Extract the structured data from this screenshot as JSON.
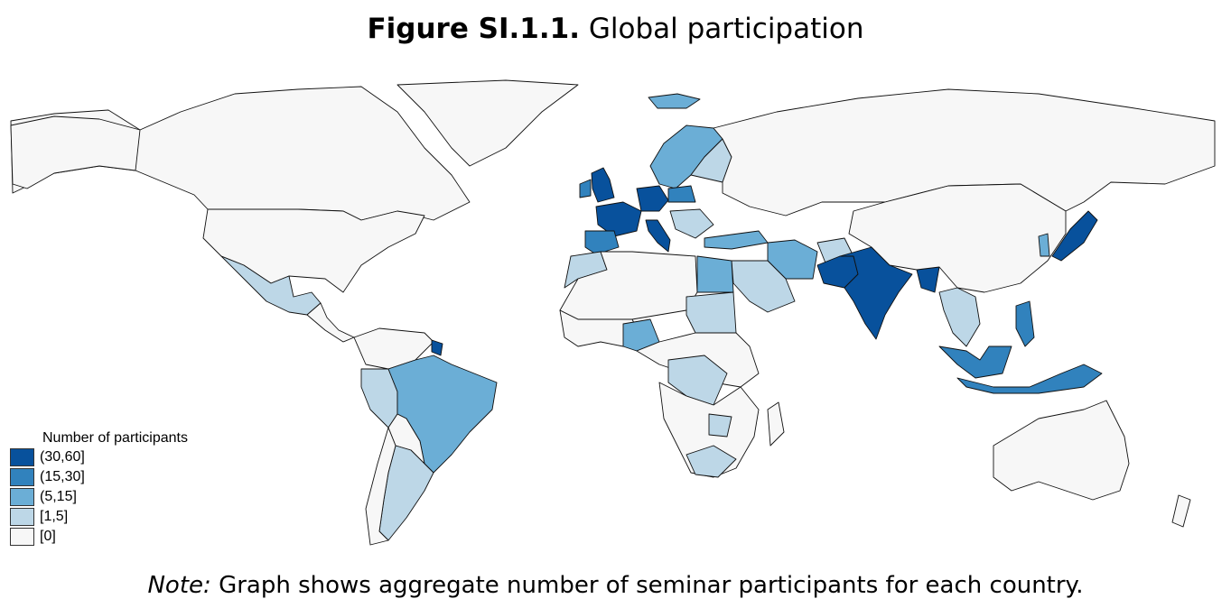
{
  "figure": {
    "label": "Figure SI.1.1.",
    "title": "Global participation"
  },
  "legend": {
    "title": "Number of participants",
    "items": [
      {
        "label": "(30,60]",
        "color": "#08519c"
      },
      {
        "label": "(15,30]",
        "color": "#3182bd"
      },
      {
        "label": "(5,15]",
        "color": "#6baed6"
      },
      {
        "label": "[1,5]",
        "color": "#bdd7e7"
      },
      {
        "label": "[0]",
        "color": "#f7f7f7"
      }
    ]
  },
  "note": {
    "label": "Note:",
    "text": "Graph shows aggregate number of seminar participants for each country."
  },
  "map_data": {
    "highlighted_countries": [
      {
        "country": "United Kingdom",
        "bin": "(30,60]"
      },
      {
        "country": "France",
        "bin": "(30,60]"
      },
      {
        "country": "Germany",
        "bin": "(30,60]"
      },
      {
        "country": "Italy",
        "bin": "(30,60]"
      },
      {
        "country": "India",
        "bin": "(30,60]"
      },
      {
        "country": "Pakistan",
        "bin": "(30,60]"
      },
      {
        "country": "Bangladesh",
        "bin": "(30,60]"
      },
      {
        "country": "Japan",
        "bin": "(30,60]"
      },
      {
        "country": "French Guiana",
        "bin": "(30,60]"
      },
      {
        "country": "Spain",
        "bin": "(15,30]"
      },
      {
        "country": "Poland",
        "bin": "(15,30]"
      },
      {
        "country": "Switzerland",
        "bin": "(15,30]"
      },
      {
        "country": "Malaysia",
        "bin": "(15,30]"
      },
      {
        "country": "Indonesia",
        "bin": "(15,30]"
      },
      {
        "country": "Philippines",
        "bin": "(15,30]"
      },
      {
        "country": "Brazil",
        "bin": "(5,15]"
      },
      {
        "country": "Nigeria",
        "bin": "(5,15]"
      },
      {
        "country": "Egypt",
        "bin": "(5,15]"
      },
      {
        "country": "Iran",
        "bin": "(5,15]"
      },
      {
        "country": "Turkey",
        "bin": "(5,15]"
      },
      {
        "country": "Sweden",
        "bin": "(5,15]"
      },
      {
        "country": "Norway",
        "bin": "(5,15]"
      },
      {
        "country": "Iceland",
        "bin": "(5,15]"
      },
      {
        "country": "South Korea",
        "bin": "(5,15]"
      },
      {
        "country": "Mexico",
        "bin": "[1,5]"
      },
      {
        "country": "Peru",
        "bin": "[1,5]"
      },
      {
        "country": "Argentina",
        "bin": "[1,5]"
      },
      {
        "country": "Sudan",
        "bin": "[1,5]"
      },
      {
        "country": "DR Congo",
        "bin": "[1,5]"
      },
      {
        "country": "Saudi Arabia",
        "bin": "[1,5]"
      },
      {
        "country": "Morocco",
        "bin": "[1,5]"
      },
      {
        "country": "Finland",
        "bin": "[1,5]"
      },
      {
        "country": "Afghanistan",
        "bin": "[1,5]"
      },
      {
        "country": "Thailand",
        "bin": "[1,5]"
      },
      {
        "country": "Vietnam",
        "bin": "[1,5]"
      },
      {
        "country": "Zimbabwe",
        "bin": "[1,5]"
      },
      {
        "country": "South Africa",
        "bin": "[1,5]"
      }
    ]
  }
}
